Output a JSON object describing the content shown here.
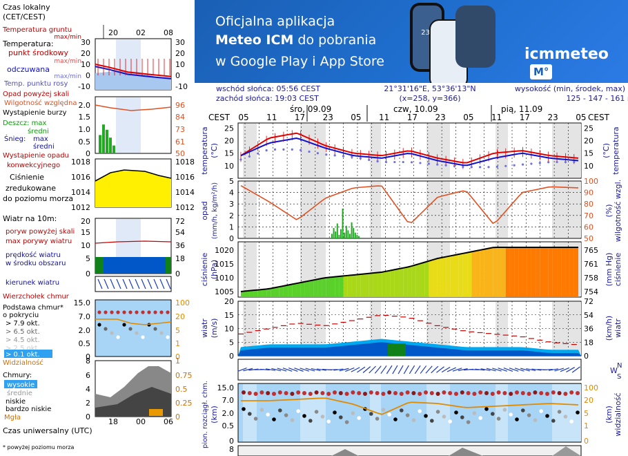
{
  "banner": {
    "line1": "Oficjalna aplikacja",
    "line2_bold": "Meteo ICM",
    "line2_rest": " do pobrania",
    "line3": "w Google Play i App Store",
    "logo": "icmmeteo",
    "logo_box": "M°",
    "phone_temp": "23°"
  },
  "legend": {
    "czas_lokalny": "Czas lokalny",
    "cet": "(CET/CEST)",
    "top_ticks": [
      "20",
      "02",
      "08"
    ],
    "temp_ground": "Temperatura gruntu",
    "temp_ground_mm": "max/min",
    "temperature": "Temperatura:",
    "mid_point": "punkt środkowy",
    "mid_mm": "max/min",
    "feels": "odczuwana",
    "feels_mm": "max/min",
    "dew": "Temp. punktu rosy",
    "temp_ticks": [
      "30",
      "20",
      "10",
      "0",
      "-10"
    ],
    "rain_above": "Opad powyżej skali",
    "humidity": "Wilgotność względna",
    "storm": "Wystąpienie burzy",
    "rain": "Deszcz: max",
    "rain_avg": "średni",
    "snow": "Śnieg:",
    "snow_max": "max",
    "snow_avg": "średni",
    "conv": "Wystąpienie opadu",
    "conv2": "konwekcyjnego",
    "rain_ticks": [
      "2.0",
      "1.5",
      "1.0",
      "0.5",
      "0"
    ],
    "hum_ticks": [
      "96",
      "84",
      "73",
      "61",
      "50"
    ],
    "pressure": "Ciśnienie",
    "reduced": "zredukowane",
    "sealevel": "do poziomu morza",
    "press_ticks": [
      "1018",
      "1016",
      "1014",
      "1012"
    ],
    "wind10": "Wiatr na 10m:",
    "gust_above": "poryw powyżej skali",
    "gust_max": "max porywy wiatru",
    "speed": "prędkość wiatru",
    "speed2": "w środku obszaru",
    "wind_ticks": [
      "20",
      "15",
      "10",
      "5",
      "0"
    ],
    "wind_kmh": [
      "72",
      "54",
      "36",
      "18",
      "0"
    ],
    "dir": "kierunek wiatru",
    "cloud_top": "Wierzchołek chmur",
    "cloud_base": "Podstawa chmur*",
    "coverage": "o pokryciu",
    "c79": "> 7.9 okt.",
    "c65": "> 6.5 okt.",
    "c45": "> 4.5 okt.",
    "c25": "> 2.5 okt.",
    "c01": "> 0.1 okt.",
    "visibility": "Widzialność",
    "cb_ticks": [
      "15.0",
      "7.0",
      "2.0",
      "0.5",
      "0"
    ],
    "vis_ticks": [
      "100",
      "20",
      "5",
      "1",
      "0"
    ],
    "clouds": "Chmury:",
    "high": "wysokie",
    "mid": "średnie",
    "low": "niskie",
    "vlow": "bardzo niskie",
    "fog": "Mgła",
    "cl_ticks": [
      "8",
      "6",
      "4",
      "2",
      "0"
    ],
    "cl_r": [
      "1",
      "0.75",
      "0.5",
      "0.25",
      "0"
    ],
    "utc": "Czas uniwersalny (UTC)",
    "bottom_ticks": [
      "18",
      "00",
      "06"
    ],
    "footnote": "* powyżej poziomu morza"
  },
  "info": {
    "sunrise": "wschód słońca: 05:56 CEST",
    "sunset": "zachód słońca: 19:03 CEST",
    "coords": "21°31'16\"E, 53°36'13\"N",
    "grid": "(x=258,  y=366)",
    "height": "wysokość (min, środek, max)",
    "height_vals": "125 - 147 - 161 m"
  },
  "main": {
    "cest": "CEST",
    "days": [
      "śro, 09.09",
      "czw, 10.09",
      "pią, 11.09"
    ],
    "hours": [
      "05",
      "11",
      "17",
      "23",
      "05",
      "11",
      "17",
      "23",
      "05",
      "11",
      "17",
      "23",
      "05"
    ],
    "temp_ylabel": "temperatura",
    "temp_unit": "(°C)",
    "temp_ticks": [
      "25",
      "20",
      "15",
      "10"
    ],
    "rain_ylabel": "opad",
    "rain_unit": "(mm/h, kg/m²/h)",
    "rain_ticks": [
      "5",
      "4",
      "3",
      "2",
      "1",
      "0"
    ],
    "hum_ylabel": "wilgotność wzgl.",
    "hum_unit": "(%)",
    "hum_ticks": [
      "100",
      "90",
      "80",
      "70",
      "60",
      "50"
    ],
    "press_ylabel": "ciśnienie",
    "press_unit": "(hPa)",
    "press_ticks": [
      "1020",
      "1015",
      "1010",
      "1005"
    ],
    "pressmm_unit": "(mm Hg)",
    "pressmm_ticks": [
      "765",
      "761",
      "758",
      "754"
    ],
    "wind_ylabel": "wiatr",
    "wind_unit": "(m/s)",
    "wind_ticks": [
      "20",
      "15",
      "10",
      "5",
      "0"
    ],
    "windkmh_unit": "(km/h)",
    "windkmh_ticks": [
      "72",
      "54",
      "36",
      "18",
      "0"
    ],
    "dir_letters": "WNS",
    "cb_ylabel": "pion. rozciągł. chm.",
    "cb_unit": "(km)",
    "cb_ticks": [
      "15.0",
      "7.0",
      "2.0",
      "0.5",
      "0"
    ],
    "vis_ylabel": "widzialność",
    "vis_unit": "(km)",
    "vis_ticks": [
      "100",
      "20",
      "5",
      "1",
      "0"
    ],
    "cl_ticks": [
      "8"
    ]
  },
  "colors": {
    "temp": "#dd0000",
    "feels": "#1010cc",
    "dew": "#7070e0",
    "humidity": "#e05020",
    "rain": "#22aa22",
    "pressure_lo": "#44cc22",
    "pressure_hi": "#ff7a00",
    "wind": "#0070dd",
    "gust": "#c80000",
    "cloud_bg": "#a8d4f5",
    "vis": "#e08a00",
    "title": "#1a1a99"
  },
  "chart_data": [
    {
      "type": "line",
      "title": "temperatura (°C)",
      "x": [
        "09.09 05",
        "09.09 11",
        "09.09 17",
        "09.09 23",
        "10.09 05",
        "10.09 11",
        "10.09 17",
        "10.09 23",
        "11.09 05",
        "11.09 11",
        "11.09 17",
        "11.09 23",
        "12.09 05"
      ],
      "series": [
        {
          "name": "temperatura",
          "values": [
            14,
            21,
            23,
            18,
            15,
            14,
            16,
            13,
            11,
            15,
            16,
            14,
            13
          ]
        },
        {
          "name": "odczuwana",
          "values": [
            14,
            19,
            21,
            17,
            14,
            13,
            15,
            12,
            10,
            13,
            15,
            13,
            12
          ]
        },
        {
          "name": "punkt rosy",
          "values": [
            13,
            17,
            17,
            15,
            14,
            12,
            12,
            11,
            10,
            10,
            11,
            12,
            12
          ]
        }
      ],
      "ylim": [
        5,
        27
      ]
    },
    {
      "type": "line",
      "title": "wilgotność wzgl. (%)",
      "x": [
        "09.09 05",
        "09.09 11",
        "09.09 17",
        "09.09 23",
        "10.09 05",
        "10.09 11",
        "10.09 17",
        "10.09 23",
        "11.09 05",
        "11.09 11",
        "11.09 17",
        "11.09 23",
        "12.09 05"
      ],
      "values": [
        96,
        82,
        66,
        85,
        94,
        96,
        62,
        86,
        92,
        62,
        90,
        95,
        94
      ],
      "ylim": [
        50,
        100
      ]
    },
    {
      "type": "bar",
      "title": "opad (mm/h)",
      "x": [
        "10.09 02",
        "10.09 03",
        "10.09 04",
        "10.09 05",
        "10.09 06",
        "10.09 07",
        "10.09 08"
      ],
      "values": [
        0.4,
        0.8,
        0.6,
        0.2,
        0.9,
        0.7,
        0.3
      ],
      "ylim": [
        0,
        5
      ]
    },
    {
      "type": "area",
      "title": "ciśnienie (hPa)",
      "x": [
        "09.09 05",
        "09.09 11",
        "09.09 17",
        "09.09 23",
        "10.09 05",
        "10.09 11",
        "10.09 17",
        "10.09 23",
        "11.09 05",
        "11.09 11",
        "11.09 17",
        "11.09 23",
        "12.09 05"
      ],
      "values": [
        1005,
        1006,
        1008,
        1010,
        1011,
        1012,
        1014,
        1017,
        1019,
        1021,
        1021,
        1021,
        1021
      ],
      "ylim": [
        1003,
        1023
      ]
    },
    {
      "type": "area",
      "title": "wiatr (m/s)",
      "x": [
        "09.09 05",
        "09.09 11",
        "09.09 17",
        "09.09 23",
        "10.09 05",
        "10.09 11",
        "10.09 17",
        "10.09 23",
        "11.09 05",
        "11.09 11",
        "11.09 17",
        "11.09 23",
        "12.09 05"
      ],
      "series": [
        {
          "name": "prędkość wiatru",
          "values": [
            2,
            3,
            3,
            3,
            4,
            5,
            4,
            3,
            2,
            2,
            2,
            1,
            1
          ]
        },
        {
          "name": "max porywy wiatru",
          "values": [
            8,
            10,
            12,
            11,
            13,
            15,
            14,
            11,
            9,
            8,
            7,
            5,
            4
          ]
        }
      ],
      "ylim": [
        0,
        20
      ]
    }
  ]
}
